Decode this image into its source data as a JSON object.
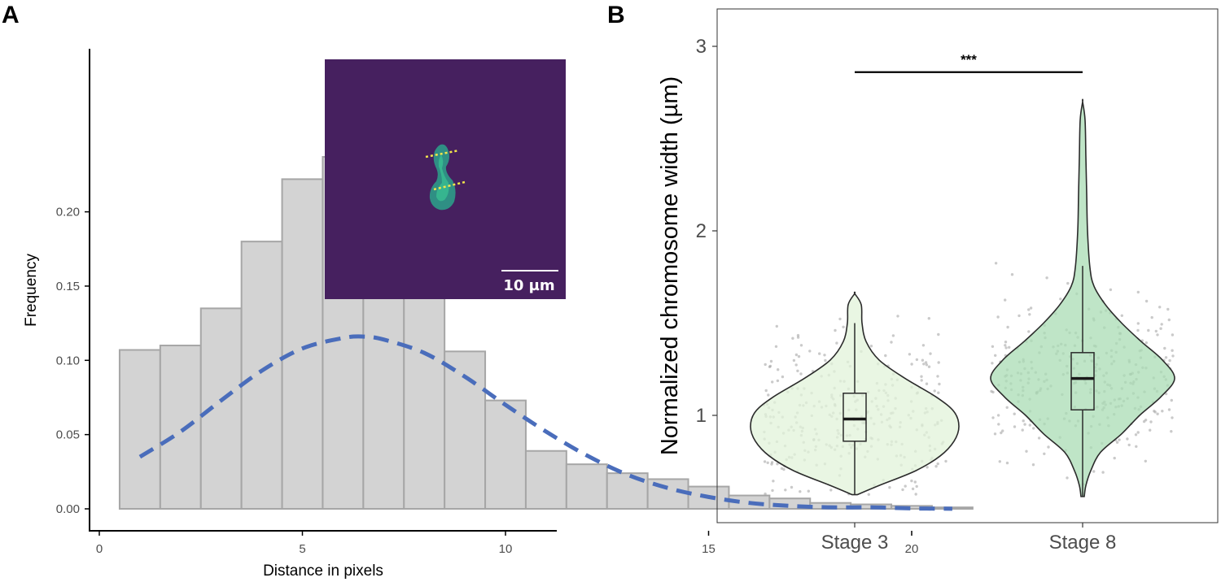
{
  "panels": {
    "a_label": "A",
    "b_label": "B"
  },
  "chart_data": [
    {
      "panel": "A",
      "type": "bar",
      "xlabel": "Distance in pixels",
      "ylabel": "Frequency",
      "xlim": [
        -0.5,
        22.5
      ],
      "ylim": [
        0,
        0.245
      ],
      "x_ticks": [
        0,
        5,
        10,
        15,
        20
      ],
      "y_ticks": [
        0.0,
        0.05,
        0.1,
        0.15,
        0.2
      ],
      "y_tick_labels": [
        "0.00",
        "0.05",
        "0.10",
        "0.15",
        "0.20"
      ],
      "bin_width": 1,
      "bin_starts": [
        0.5,
        1.5,
        2.5,
        3.5,
        4.5,
        5.5,
        6.5,
        7.5,
        8.5,
        9.5,
        10.5,
        11.5,
        12.5,
        13.5,
        14.5,
        15.5,
        16.5,
        17.5,
        18.5,
        19.5,
        20.5
      ],
      "values": [
        0.107,
        0.11,
        0.135,
        0.18,
        0.222,
        0.237,
        0.218,
        0.168,
        0.106,
        0.073,
        0.039,
        0.03,
        0.024,
        0.02,
        0.015,
        0.009,
        0.007,
        0.004,
        0.003,
        0.002,
        0.001
      ],
      "fit_curve": {
        "style": "dashed",
        "color": "#4a6dbb",
        "x": [
          1,
          2,
          3,
          4,
          5,
          6,
          6.5,
          7,
          8,
          9,
          10,
          11,
          12,
          13,
          14,
          15,
          16,
          17,
          18,
          19,
          20,
          21
        ],
        "y": [
          0.035,
          0.052,
          0.073,
          0.093,
          0.108,
          0.115,
          0.116,
          0.114,
          0.105,
          0.089,
          0.07,
          0.052,
          0.036,
          0.023,
          0.014,
          0.008,
          0.004,
          0.002,
          0.001,
          0.001,
          0.0003,
          0.0001
        ]
      },
      "bar_fill": "#d3d3d3",
      "bar_stroke": "#a6a6a6",
      "inset": {
        "background": "#46205f",
        "scale_bar_label": "10 µm"
      }
    },
    {
      "panel": "B",
      "type": "violin",
      "categories": [
        "Stage 3",
        "Stage 8"
      ],
      "ylabel": "Normalized chromosome width (µm)",
      "ylim": [
        0.45,
        3.1
      ],
      "y_ticks": [
        1,
        2,
        3
      ],
      "series": [
        {
          "category": "Stage 3",
          "fill": "#e1f3da",
          "box": {
            "min": 0.57,
            "q1": 0.86,
            "median": 0.98,
            "q3": 1.12,
            "max": 1.5
          },
          "violin_max": 1.66,
          "violin_min": 0.57
        },
        {
          "category": "Stage 8",
          "fill": "#a9dcb4",
          "box": {
            "min": 0.56,
            "q1": 1.03,
            "median": 1.2,
            "q3": 1.34,
            "max": 1.81
          },
          "violin_max": 2.7,
          "violin_min": 0.56
        }
      ],
      "significance": {
        "label": "***",
        "from": "Stage 3",
        "to": "Stage 8",
        "y": 2.86
      }
    }
  ]
}
